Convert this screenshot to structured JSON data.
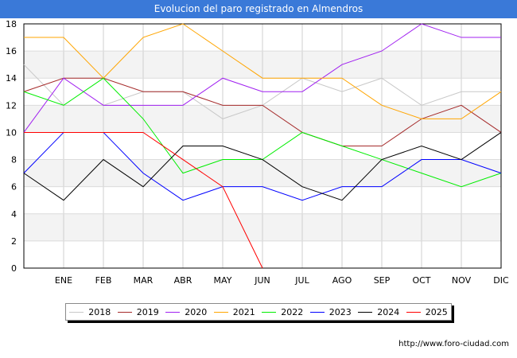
{
  "chart_data": {
    "type": "line",
    "title": "Evolucion del paro registrado en Almendros",
    "categories": [
      "",
      "ENE",
      "FEB",
      "MAR",
      "ABR",
      "MAY",
      "JUN",
      "JUL",
      "AGO",
      "SEP",
      "OCT",
      "NOV",
      "DIC"
    ],
    "ylim": [
      0,
      18
    ],
    "yticks": [
      0,
      2,
      4,
      6,
      8,
      10,
      12,
      14,
      16,
      18
    ],
    "grid": true,
    "legend_position": "bottom",
    "series": [
      {
        "name": "2018",
        "color": "#c8c8c8",
        "values": [
          15,
          12,
          12,
          13,
          13,
          11,
          12,
          14,
          13,
          14,
          12,
          13,
          13
        ]
      },
      {
        "name": "2019",
        "color": "#a52a2a",
        "values": [
          13,
          14,
          14,
          13,
          13,
          12,
          12,
          10,
          9,
          9,
          11,
          12,
          10
        ]
      },
      {
        "name": "2020",
        "color": "#a020f0",
        "values": [
          10,
          14,
          12,
          12,
          12,
          14,
          13,
          13,
          15,
          16,
          18,
          17,
          17
        ]
      },
      {
        "name": "2021",
        "color": "#ffa500",
        "values": [
          17,
          17,
          14,
          17,
          18,
          16,
          14,
          14,
          14,
          12,
          11,
          11,
          13
        ]
      },
      {
        "name": "2022",
        "color": "#00ee00",
        "values": [
          13,
          12,
          14,
          11,
          7,
          8,
          8,
          10,
          9,
          8,
          7,
          6,
          7
        ]
      },
      {
        "name": "2023",
        "color": "#0000ff",
        "values": [
          7,
          10,
          10,
          7,
          5,
          6,
          6,
          5,
          6,
          6,
          8,
          8,
          7
        ]
      },
      {
        "name": "2024",
        "color": "#000000",
        "values": [
          7,
          5,
          8,
          6,
          9,
          9,
          8,
          6,
          5,
          8,
          9,
          8,
          10
        ]
      },
      {
        "name": "2025",
        "color": "#ff0000",
        "values": [
          10,
          10,
          10,
          10,
          8,
          6,
          0,
          null,
          null,
          null,
          null,
          null,
          null
        ]
      }
    ]
  },
  "source": "http://www.foro-ciudad.com"
}
